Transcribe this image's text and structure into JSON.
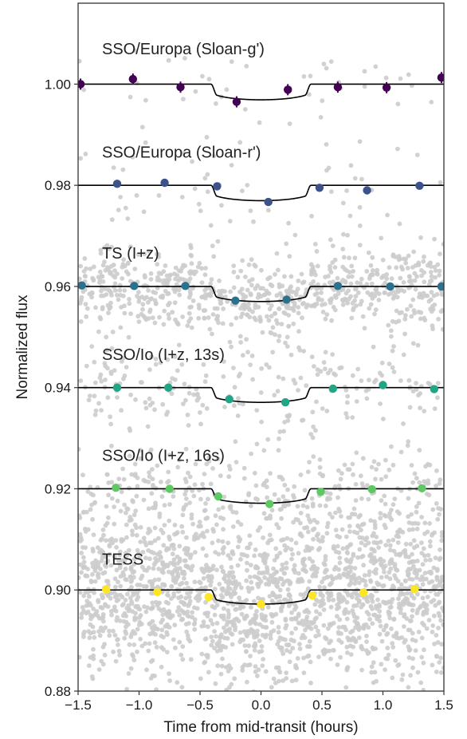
{
  "chart_data": {
    "type": "scatter",
    "title": "",
    "xlabel": "Time from mid-transit (hours)",
    "ylabel": "Normalized flux",
    "xlim": [
      -1.5,
      1.5
    ],
    "ylim": [
      0.88,
      1.016
    ],
    "xticks": [
      -1.5,
      -1.0,
      -0.5,
      0.0,
      0.5,
      1.0,
      1.5
    ],
    "xtick_labels": [
      "−1.5",
      "−1.0",
      "−0.5",
      "0.0",
      "0.5",
      "1.0",
      "1.5"
    ],
    "yticks": [
      0.88,
      0.9,
      0.92,
      0.94,
      0.96,
      0.98,
      1.0
    ],
    "ytick_labels": [
      "0.88",
      "0.90",
      "0.92",
      "0.94",
      "0.96",
      "0.98",
      "1.00"
    ],
    "grid": false,
    "legend": "none",
    "raw_point_color": "#cccccc",
    "model_color": "#000000",
    "transit_model": {
      "t1": -0.41,
      "t2": -0.36,
      "t3": 0.36,
      "t4": 0.41
    },
    "series": [
      {
        "name": "SSO/Europa (Sloan-g')",
        "offset": 1.0,
        "depth": 0.0031,
        "color": "#440154",
        "errorbar": true,
        "raw_scatter": 0.005,
        "raw_count": 45,
        "label_pos": [
          -1.5,
          1.007
        ],
        "binned": [
          {
            "x": -1.48,
            "y": 1.0
          },
          {
            "x": -1.05,
            "y": 1.001
          },
          {
            "x": -0.66,
            "y": 0.9994
          },
          {
            "x": -0.2,
            "y": 0.9965
          },
          {
            "x": 0.22,
            "y": 0.9989
          },
          {
            "x": 0.63,
            "y": 0.9994
          },
          {
            "x": 1.03,
            "y": 0.9993
          },
          {
            "x": 1.48,
            "y": 1.0013
          }
        ]
      },
      {
        "name": "SSO/Europa (Sloan-r')",
        "offset": 0.98,
        "depth": 0.0031,
        "color": "#3b528b",
        "errorbar": false,
        "raw_scatter": 0.005,
        "raw_count": 55,
        "label_pos": [
          -1.5,
          0.9866
        ],
        "binned": [
          {
            "x": -1.18,
            "y": 0.9803
          },
          {
            "x": -0.79,
            "y": 0.9805
          },
          {
            "x": -0.36,
            "y": 0.9798
          },
          {
            "x": 0.06,
            "y": 0.9767
          },
          {
            "x": 0.48,
            "y": 0.9795
          },
          {
            "x": 0.87,
            "y": 0.979
          },
          {
            "x": 1.3,
            "y": 0.9799
          }
        ]
      },
      {
        "name": "TS (I+z)",
        "offset": 0.96,
        "depth": 0.0031,
        "color": "#2c728e",
        "errorbar": false,
        "raw_scatter": 0.004,
        "raw_count": 750,
        "label_pos": [
          -1.5,
          0.9666
        ],
        "binned": [
          {
            "x": -1.47,
            "y": 0.9602
          },
          {
            "x": -1.04,
            "y": 0.9601
          },
          {
            "x": -0.62,
            "y": 0.9601
          },
          {
            "x": -0.21,
            "y": 0.9572
          },
          {
            "x": 0.21,
            "y": 0.9574
          },
          {
            "x": 0.63,
            "y": 0.9601
          },
          {
            "x": 1.06,
            "y": 0.96
          },
          {
            "x": 1.48,
            "y": 0.96
          }
        ]
      },
      {
        "name": "SSO/Io (I+z, 13s)",
        "offset": 0.94,
        "depth": 0.0031,
        "color": "#21a585",
        "errorbar": false,
        "raw_scatter": 0.0045,
        "raw_count": 220,
        "label_pos": [
          -1.5,
          0.9466
        ],
        "binned": [
          {
            "x": -1.18,
            "y": 0.94
          },
          {
            "x": -0.76,
            "y": 0.94
          },
          {
            "x": -0.26,
            "y": 0.9377
          },
          {
            "x": 0.2,
            "y": 0.9371
          },
          {
            "x": 0.59,
            "y": 0.9398
          },
          {
            "x": 1.0,
            "y": 0.9405
          },
          {
            "x": 1.42,
            "y": 0.9397
          }
        ]
      },
      {
        "name": "SSO/Io (I+z, 16s)",
        "offset": 0.92,
        "depth": 0.0031,
        "color": "#5ec962",
        "errorbar": false,
        "raw_scatter": 0.0045,
        "raw_count": 260,
        "label_pos": [
          -1.5,
          0.9266
        ],
        "binned": [
          {
            "x": -1.19,
            "y": 0.9202
          },
          {
            "x": -0.75,
            "y": 0.92
          },
          {
            "x": -0.35,
            "y": 0.9185
          },
          {
            "x": 0.07,
            "y": 0.917
          },
          {
            "x": 0.49,
            "y": 0.9194
          },
          {
            "x": 0.91,
            "y": 0.9199
          },
          {
            "x": 1.32,
            "y": 0.9201
          }
        ]
      },
      {
        "name": "TESS",
        "offset": 0.9,
        "depth": 0.0031,
        "color": "#fde725",
        "errorbar": false,
        "raw_scatter": 0.0085,
        "raw_count": 1900,
        "label_pos": [
          -1.5,
          0.9061
        ],
        "binned": [
          {
            "x": -1.27,
            "y": 0.9001
          },
          {
            "x": -0.85,
            "y": 0.8996
          },
          {
            "x": -0.43,
            "y": 0.8986
          },
          {
            "x": 0.0,
            "y": 0.8972
          },
          {
            "x": 0.42,
            "y": 0.8989
          },
          {
            "x": 0.84,
            "y": 0.8995
          },
          {
            "x": 1.26,
            "y": 0.9002
          }
        ]
      }
    ]
  }
}
